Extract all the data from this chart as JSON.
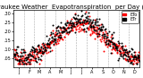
{
  "title": "Milwaukee Weather  Evapotranspiration  per Day (Inches)",
  "background_color": "#ffffff",
  "plot_bg_color": "#ffffff",
  "grid_color": "#aaaaaa",
  "ylim": [
    0.0,
    0.32
  ],
  "yticks": [
    0.05,
    0.1,
    0.15,
    0.2,
    0.25,
    0.3
  ],
  "ytick_labels": [
    ".05",
    ".10",
    ".15",
    ".20",
    ".25",
    ".30"
  ],
  "legend_label_red": "ETo",
  "legend_label_black": "ETr",
  "dot_size": 2,
  "red_color": "#ff0000",
  "black_color": "#000000",
  "vlines_x": [
    32,
    60,
    91,
    121,
    152,
    182,
    213,
    244,
    274,
    305,
    335
  ],
  "xtick_positions": [
    16,
    46,
    75,
    106,
    136,
    167,
    197,
    228,
    259,
    289,
    320,
    350
  ],
  "xtick_labels": [
    "J",
    "F",
    "M",
    "A",
    "M",
    "J",
    "J",
    "A",
    "S",
    "O",
    "N",
    "D"
  ],
  "title_fontsize": 5.0,
  "tick_fontsize": 3.5
}
